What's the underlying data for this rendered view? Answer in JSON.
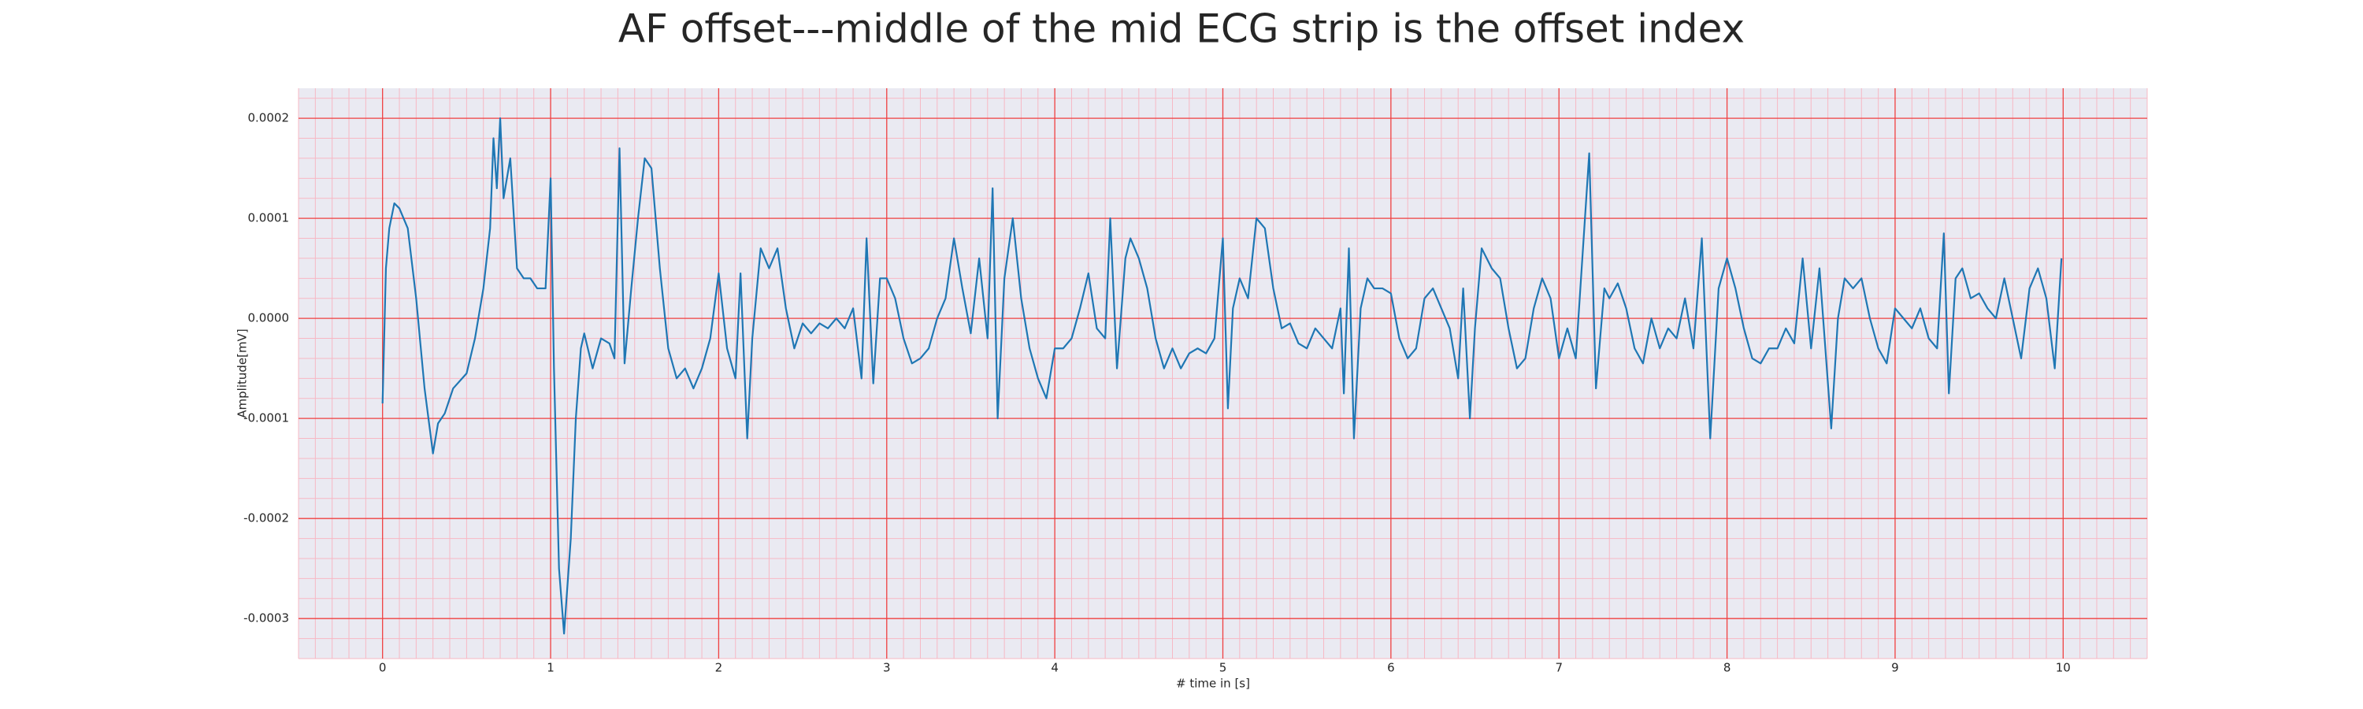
{
  "chart_data": {
    "type": "line",
    "title": "AF offset---middle of the mid ECG strip is the offset index",
    "xlabel": "# time in [s]",
    "ylabel": "Amplitude[mV]",
    "xlim": [
      -0.5,
      10.5
    ],
    "ylim": [
      -0.00034,
      0.00023
    ],
    "xticks": [
      0,
      1,
      2,
      3,
      4,
      5,
      6,
      7,
      8,
      9,
      10
    ],
    "yticks": [
      {
        "value": -0.0003,
        "label": "-0.0003"
      },
      {
        "value": -0.0002,
        "label": "-0.0002"
      },
      {
        "value": -0.0001,
        "label": "-0.0001"
      },
      {
        "value": 0,
        "label": "0.0000"
      },
      {
        "value": 0.0001,
        "label": "0.0001"
      },
      {
        "value": 0.0002,
        "label": "0.0002"
      }
    ],
    "grid": true,
    "minor_grid": true,
    "series": [
      {
        "color": "#1f77b4",
        "x": [
          0,
          0.02,
          0.04,
          0.07,
          0.1,
          0.15,
          0.2,
          0.25,
          0.3,
          0.33,
          0.37,
          0.42,
          0.5,
          0.55,
          0.6,
          0.64,
          0.66,
          0.68,
          0.7,
          0.72,
          0.76,
          0.8,
          0.84,
          0.88,
          0.92,
          0.97,
          1.0,
          1.02,
          1.05,
          1.08,
          1.12,
          1.15,
          1.18,
          1.2,
          1.25,
          1.3,
          1.35,
          1.38,
          1.41,
          1.44,
          1.48,
          1.52,
          1.56,
          1.6,
          1.65,
          1.7,
          1.75,
          1.8,
          1.85,
          1.9,
          1.95,
          2.0,
          2.05,
          2.1,
          2.13,
          2.17,
          2.2,
          2.25,
          2.3,
          2.35,
          2.4,
          2.45,
          2.5,
          2.55,
          2.6,
          2.65,
          2.7,
          2.75,
          2.8,
          2.85,
          2.88,
          2.92,
          2.96,
          3.0,
          3.05,
          3.1,
          3.15,
          3.2,
          3.25,
          3.3,
          3.35,
          3.4,
          3.45,
          3.5,
          3.55,
          3.6,
          3.63,
          3.66,
          3.7,
          3.75,
          3.8,
          3.85,
          3.9,
          3.95,
          4.0,
          4.05,
          4.1,
          4.15,
          4.2,
          4.25,
          4.3,
          4.33,
          4.37,
          4.42,
          4.45,
          4.5,
          4.55,
          4.6,
          4.65,
          4.7,
          4.75,
          4.8,
          4.85,
          4.9,
          4.95,
          5.0,
          5.03,
          5.06,
          5.1,
          5.15,
          5.2,
          5.25,
          5.3,
          5.35,
          5.4,
          5.45,
          5.5,
          5.55,
          5.6,
          5.65,
          5.7,
          5.72,
          5.75,
          5.78,
          5.82,
          5.86,
          5.9,
          5.95,
          6.0,
          6.05,
          6.1,
          6.15,
          6.2,
          6.25,
          6.3,
          6.35,
          6.4,
          6.43,
          6.47,
          6.5,
          6.54,
          6.6,
          6.65,
          6.7,
          6.75,
          6.8,
          6.85,
          6.9,
          6.95,
          7.0,
          7.05,
          7.1,
          7.18,
          7.22,
          7.27,
          7.3,
          7.35,
          7.4,
          7.45,
          7.5,
          7.55,
          7.6,
          7.65,
          7.7,
          7.75,
          7.8,
          7.85,
          7.9,
          7.95,
          8.0,
          8.05,
          8.1,
          8.15,
          8.2,
          8.25,
          8.3,
          8.35,
          8.4,
          8.45,
          8.5,
          8.55,
          8.62,
          8.66,
          8.7,
          8.75,
          8.8,
          8.85,
          8.9,
          8.95,
          9.0,
          9.05,
          9.1,
          9.15,
          9.2,
          9.25,
          9.29,
          9.32,
          9.36,
          9.4,
          9.45,
          9.5,
          9.55,
          9.6,
          9.65,
          9.7,
          9.75,
          9.8,
          9.85,
          9.9,
          9.95,
          9.99
        ],
        "values": [
          -8.5e-05,
          5e-05,
          9e-05,
          0.000115,
          0.00011,
          9e-05,
          2e-05,
          -7e-05,
          -0.000135,
          -0.000105,
          -9.5e-05,
          -7e-05,
          -5.5e-05,
          -2e-05,
          3e-05,
          9e-05,
          0.00018,
          0.00013,
          0.0002,
          0.00012,
          0.00016,
          5e-05,
          4e-05,
          4e-05,
          3e-05,
          3e-05,
          0.00014,
          -5e-05,
          -0.00025,
          -0.000315,
          -0.00022,
          -0.0001,
          -3e-05,
          -1.5e-05,
          -5e-05,
          -2e-05,
          -2.5e-05,
          -4e-05,
          0.00017,
          -4.5e-05,
          3e-05,
          0.0001,
          0.00016,
          0.00015,
          5e-05,
          -3e-05,
          -6e-05,
          -5e-05,
          -7e-05,
          -5e-05,
          -2e-05,
          4.5e-05,
          -3e-05,
          -6e-05,
          4.5e-05,
          -0.00012,
          -2e-05,
          7e-05,
          5e-05,
          7e-05,
          1e-05,
          -3e-05,
          -5e-06,
          -1.5e-05,
          -5e-06,
          -1e-05,
          0,
          -1e-05,
          1e-05,
          -6e-05,
          8e-05,
          -6.5e-05,
          4e-05,
          4e-05,
          2e-05,
          -2e-05,
          -4.5e-05,
          -4e-05,
          -3e-05,
          0,
          2e-05,
          8e-05,
          3e-05,
          -1.5e-05,
          6e-05,
          -2e-05,
          0.00013,
          -0.0001,
          4e-05,
          0.0001,
          2e-05,
          -3e-05,
          -6e-05,
          -8e-05,
          -3e-05,
          -3e-05,
          -2e-05,
          1e-05,
          4.5e-05,
          -1e-05,
          -2e-05,
          0.0001,
          -5e-05,
          6e-05,
          8e-05,
          6e-05,
          3e-05,
          -2e-05,
          -5e-05,
          -3e-05,
          -5e-05,
          -3.5e-05,
          -3e-05,
          -3.5e-05,
          -2e-05,
          8e-05,
          -9e-05,
          1e-05,
          4e-05,
          2e-05,
          0.0001,
          9e-05,
          3e-05,
          -1e-05,
          -5e-06,
          -2.5e-05,
          -3e-05,
          -1e-05,
          -2e-05,
          -3e-05,
          1e-05,
          -7.5e-05,
          7e-05,
          -0.00012,
          1e-05,
          4e-05,
          3e-05,
          3e-05,
          2.5e-05,
          -2e-05,
          -4e-05,
          -3e-05,
          2e-05,
          3e-05,
          1e-05,
          -1e-05,
          -6e-05,
          3e-05,
          -0.0001,
          -1e-05,
          7e-05,
          5e-05,
          4e-05,
          -1e-05,
          -5e-05,
          -4e-05,
          1e-05,
          4e-05,
          2e-05,
          -4e-05,
          -1e-05,
          -4e-05,
          0.000165,
          -7e-05,
          3e-05,
          2e-05,
          3.5e-05,
          1e-05,
          -3e-05,
          -4.5e-05,
          0,
          -3e-05,
          -1e-05,
          -2e-05,
          2e-05,
          -3e-05,
          8e-05,
          -0.00012,
          3e-05,
          6e-05,
          3e-05,
          -1e-05,
          -4e-05,
          -4.5e-05,
          -3e-05,
          -3e-05,
          -1e-05,
          -2.5e-05,
          6e-05,
          -3e-05,
          5e-05,
          -0.00011,
          0,
          4e-05,
          3e-05,
          4e-05,
          0,
          -3e-05,
          -4.5e-05,
          1e-05,
          0,
          -1e-05,
          1e-05,
          -2e-05,
          -3e-05,
          8.5e-05,
          -7.5e-05,
          4e-05,
          5e-05,
          2e-05,
          2.5e-05,
          1e-05,
          0,
          4e-05,
          0,
          -4e-05,
          3e-05,
          5e-05,
          2e-05,
          -5e-05,
          6e-05
        ]
      }
    ]
  }
}
